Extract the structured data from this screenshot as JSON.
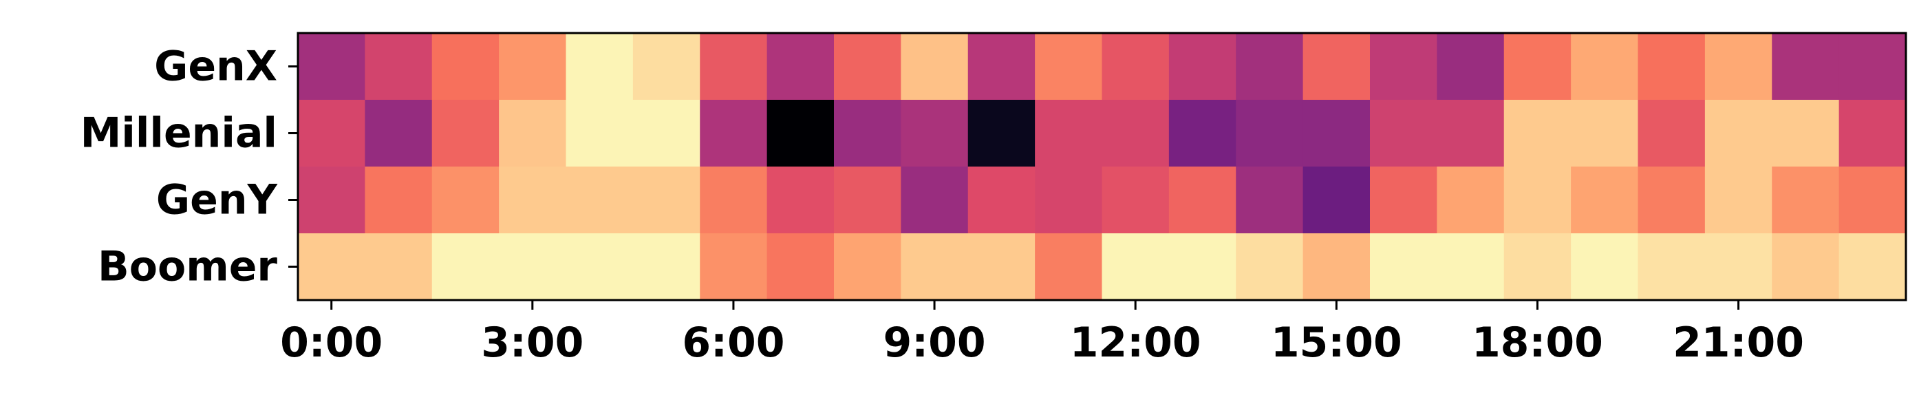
{
  "chart_data": {
    "type": "heatmap",
    "colormap": "magma",
    "value_range": [
      0,
      1
    ],
    "rows": [
      "GenX",
      "Millenial",
      "GenY",
      "Boomer"
    ],
    "x_tick_labels": [
      "0:00",
      "3:00",
      "6:00",
      "9:00",
      "12:00",
      "15:00",
      "18:00",
      "21:00"
    ],
    "x_tick_hours": [
      0,
      3,
      6,
      9,
      12,
      15,
      18,
      21
    ],
    "columns": [
      0,
      1,
      2,
      3,
      4,
      5,
      6,
      7,
      8,
      9,
      10,
      11,
      12,
      13,
      14,
      15,
      16,
      17,
      18,
      19,
      20,
      21,
      22,
      23
    ],
    "values": [
      [
        0.45,
        0.57,
        0.7,
        0.78,
        0.98,
        0.93,
        0.64,
        0.48,
        0.67,
        0.87,
        0.5,
        0.74,
        0.63,
        0.53,
        0.45,
        0.67,
        0.52,
        0.43,
        0.71,
        0.82,
        0.7,
        0.82,
        0.47,
        0.47
      ],
      [
        0.58,
        0.42,
        0.67,
        0.88,
        0.98,
        0.98,
        0.48,
        0.0,
        0.43,
        0.47,
        0.05,
        0.58,
        0.58,
        0.35,
        0.4,
        0.4,
        0.56,
        0.56,
        0.89,
        0.89,
        0.64,
        0.89,
        0.89,
        0.58
      ],
      [
        0.56,
        0.71,
        0.77,
        0.89,
        0.89,
        0.89,
        0.73,
        0.61,
        0.64,
        0.43,
        0.6,
        0.58,
        0.62,
        0.67,
        0.44,
        0.32,
        0.67,
        0.81,
        0.89,
        0.81,
        0.73,
        0.89,
        0.77,
        0.72
      ],
      [
        0.89,
        0.89,
        0.98,
        0.98,
        0.98,
        0.98,
        0.77,
        0.71,
        0.81,
        0.89,
        0.89,
        0.73,
        0.98,
        0.98,
        0.93,
        0.85,
        0.98,
        0.98,
        0.93,
        0.98,
        0.94,
        0.94,
        0.89,
        0.93
      ]
    ]
  }
}
